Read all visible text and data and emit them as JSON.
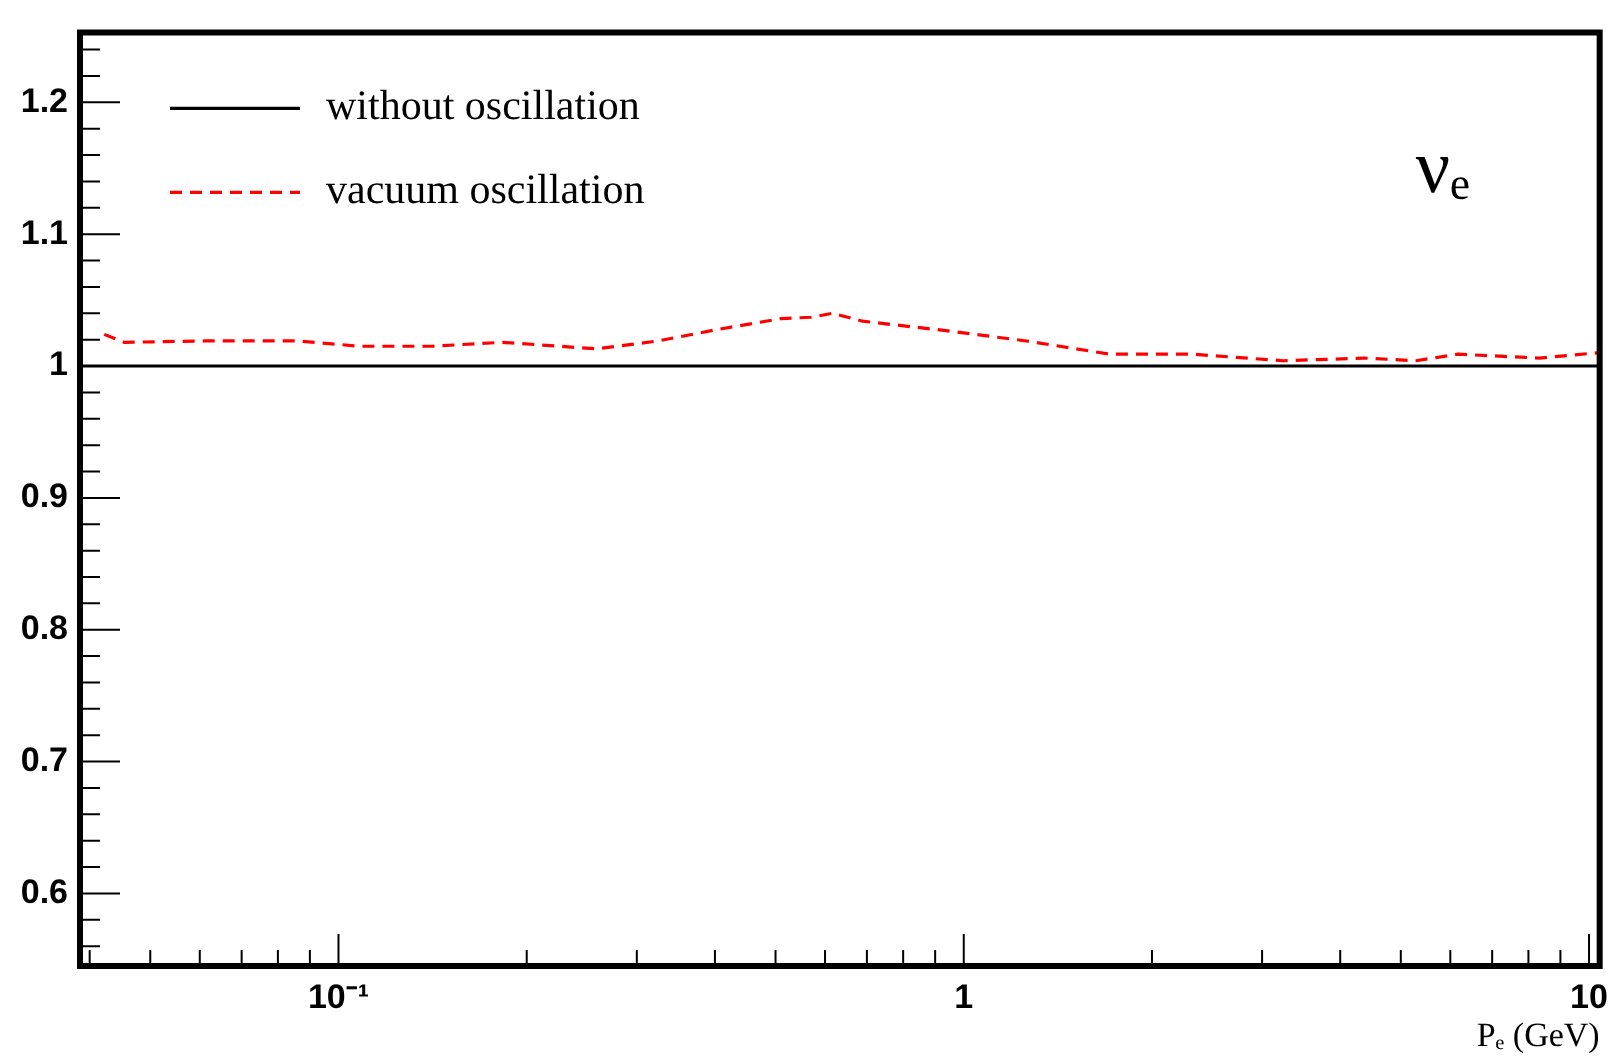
{
  "chart_data": {
    "type": "line",
    "xlabel": "Pₑ (GeV)",
    "log": "x",
    "legend": "top left",
    "marker": "none",
    "annotations": [
      "νₑ"
    ],
    "xlim": [
      0.0386,
      10.4
    ],
    "ylim": [
      0.545,
      1.253
    ],
    "xticks": [
      {
        "value": 0.04,
        "label": null
      },
      {
        "value": 0.05,
        "label": null
      },
      {
        "value": 0.06,
        "label": null
      },
      {
        "value": 0.07,
        "label": null
      },
      {
        "value": 0.08,
        "label": null
      },
      {
        "value": 0.09,
        "label": null
      },
      {
        "value": 0.1,
        "label": "10⁻¹"
      },
      {
        "value": 0.2,
        "label": null
      },
      {
        "value": 0.3,
        "label": null
      },
      {
        "value": 0.4,
        "label": null
      },
      {
        "value": 0.5,
        "label": null
      },
      {
        "value": 0.6,
        "label": null
      },
      {
        "value": 0.7,
        "label": null
      },
      {
        "value": 0.8,
        "label": null
      },
      {
        "value": 0.9,
        "label": null
      },
      1,
      {
        "value": 2,
        "label": null
      },
      {
        "value": 3,
        "label": null
      },
      {
        "value": 4,
        "label": null
      },
      {
        "value": 5,
        "label": null
      },
      {
        "value": 6,
        "label": null
      },
      {
        "value": 7,
        "label": null
      },
      {
        "value": 8,
        "label": null
      },
      {
        "value": 9,
        "label": null
      },
      10
    ],
    "yticks": [
      {
        "value": 0.56,
        "label": null
      },
      {
        "value": 0.58,
        "label": null
      },
      0.6,
      {
        "value": 0.62,
        "label": null
      },
      {
        "value": 0.64,
        "label": null
      },
      {
        "value": 0.66,
        "label": null
      },
      {
        "value": 0.68,
        "label": null
      },
      0.7,
      {
        "value": 0.72,
        "label": null
      },
      {
        "value": 0.74,
        "label": null
      },
      {
        "value": 0.76,
        "label": null
      },
      {
        "value": 0.78,
        "label": null
      },
      0.8,
      {
        "value": 0.82,
        "label": null
      },
      {
        "value": 0.84,
        "label": null
      },
      {
        "value": 0.86,
        "label": null
      },
      {
        "value": 0.88,
        "label": null
      },
      0.9,
      {
        "value": 0.92,
        "label": null
      },
      {
        "value": 0.94,
        "label": null
      },
      {
        "value": 0.96,
        "label": null
      },
      {
        "value": 0.98,
        "label": null
      },
      1,
      {
        "value": 1.02,
        "label": null
      },
      {
        "value": 1.04,
        "label": null
      },
      {
        "value": 1.06,
        "label": null
      },
      {
        "value": 1.08,
        "label": null
      },
      1.1,
      {
        "value": 1.12,
        "label": null
      },
      {
        "value": 1.14,
        "label": null
      },
      {
        "value": 1.16,
        "label": null
      },
      {
        "value": 1.18,
        "label": null
      },
      1.2,
      {
        "value": 1.22,
        "label": null
      },
      {
        "value": 1.24,
        "label": null
      }
    ],
    "series": [
      {
        "name": "without oscillation",
        "color": "#000000",
        "line_style": "solid",
        "x": [
          0.0386,
          10.4
        ],
        "values": [
          1,
          1
        ]
      },
      {
        "name": "vacuum oscillation",
        "color": "#ff0000",
        "line_style": "dashed",
        "x": [
          0.0422,
          0.0454,
          0.0613,
          0.0864,
          0.108,
          0.141,
          0.183,
          0.259,
          0.324,
          0.407,
          0.511,
          0.57,
          0.617,
          0.689,
          0.93,
          1.26,
          1.71,
          2.32,
          3.24,
          4.38,
          5.29,
          6.17,
          8.33,
          10.3
        ],
        "values": [
          1.024,
          1.018,
          1.019,
          1.019,
          1.015,
          1.015,
          1.018,
          1.013,
          1.019,
          1.028,
          1.036,
          1.037,
          1.04,
          1.034,
          1.027,
          1.019,
          1.009,
          1.009,
          1.004,
          1.006,
          1.004,
          1.009,
          1.006,
          1.01
        ]
      }
    ]
  }
}
